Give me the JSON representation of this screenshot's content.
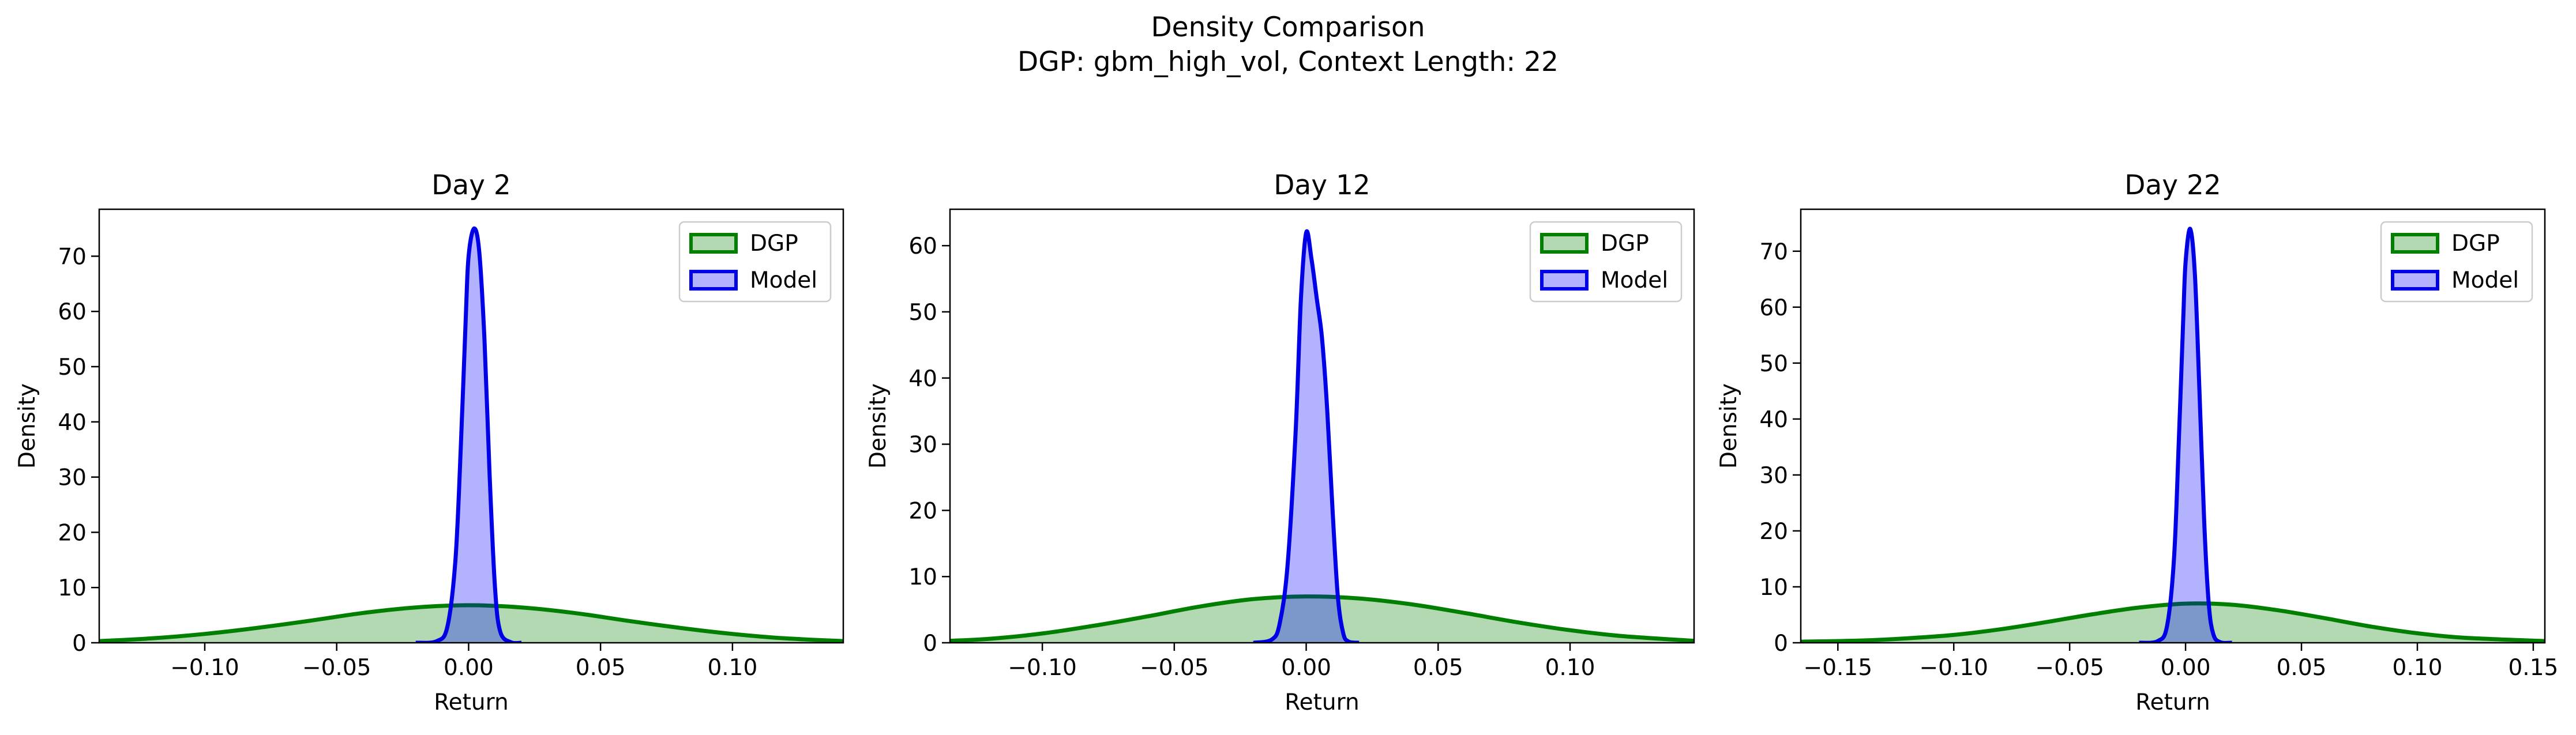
{
  "figure": {
    "title": "Density Comparison",
    "subtitle": "DGP: gbm_high_vol, Context Length: 22"
  },
  "colors": {
    "dgp_line": "#007f00",
    "dgp_fill": "#008000",
    "model_line": "#0000e6",
    "model_fill": "#0000ff"
  },
  "chart_data": [
    {
      "type": "area",
      "title": "Day 2",
      "xlabel": "Return",
      "ylabel": "Density",
      "xlim": [
        -0.14,
        0.142
      ],
      "ylim": [
        0,
        78.5
      ],
      "xticks": [
        -0.1,
        -0.05,
        0.0,
        0.05,
        0.1
      ],
      "xtick_labels": [
        "−0.10",
        "−0.05",
        "0.00",
        "0.05",
        "0.10"
      ],
      "yticks": [
        0,
        10,
        20,
        30,
        40,
        50,
        60,
        70
      ],
      "yticks_labels": [
        "0",
        "10",
        "20",
        "30",
        "40",
        "50",
        "60",
        "70"
      ],
      "legend": "top-right",
      "grid": false,
      "series": [
        {
          "name": "DGP",
          "x": [
            -0.14,
            -0.12,
            -0.1,
            -0.08,
            -0.06,
            -0.04,
            -0.02,
            0.0,
            0.02,
            0.04,
            0.06,
            0.08,
            0.1,
            0.12,
            0.142
          ],
          "y": [
            0.3,
            0.8,
            1.6,
            2.7,
            4.0,
            5.4,
            6.4,
            6.8,
            6.4,
            5.4,
            4.0,
            2.7,
            1.6,
            0.8,
            0.3
          ]
        },
        {
          "name": "Model",
          "x": [
            -0.02,
            -0.012,
            -0.008,
            -0.005,
            -0.003,
            -0.001,
            0.0,
            0.002,
            0.004,
            0.006,
            0.008,
            0.01,
            0.012,
            0.016,
            0.02
          ],
          "y": [
            0.0,
            0.3,
            3.0,
            15.0,
            35.0,
            60.0,
            70.0,
            75.0,
            71.0,
            55.0,
            30.0,
            10.0,
            2.0,
            0.1,
            0.0
          ]
        }
      ]
    },
    {
      "type": "area",
      "title": "Day 12",
      "xlabel": "Return",
      "ylabel": "Density",
      "xlim": [
        -0.135,
        0.147
      ],
      "ylim": [
        0,
        65.5
      ],
      "xticks": [
        -0.1,
        -0.05,
        0.0,
        0.05,
        0.1
      ],
      "xtick_labels": [
        "−0.10",
        "−0.05",
        "0.00",
        "0.05",
        "0.10"
      ],
      "yticks": [
        0,
        10,
        20,
        30,
        40,
        50,
        60
      ],
      "yticks_labels": [
        "0",
        "10",
        "20",
        "30",
        "40",
        "50",
        "60"
      ],
      "legend": "top-right",
      "grid": false,
      "series": [
        {
          "name": "DGP",
          "x": [
            -0.135,
            -0.12,
            -0.1,
            -0.08,
            -0.06,
            -0.04,
            -0.02,
            0.0,
            0.02,
            0.04,
            0.06,
            0.08,
            0.1,
            0.12,
            0.147
          ],
          "y": [
            0.3,
            0.6,
            1.4,
            2.6,
            4.0,
            5.5,
            6.6,
            7.0,
            6.7,
            5.8,
            4.5,
            3.1,
            1.9,
            1.0,
            0.3
          ]
        },
        {
          "name": "Model",
          "x": [
            -0.02,
            -0.013,
            -0.01,
            -0.007,
            -0.004,
            -0.002,
            0.0,
            0.002,
            0.004,
            0.006,
            0.008,
            0.01,
            0.012,
            0.014,
            0.016,
            0.02
          ],
          "y": [
            0.0,
            0.5,
            3.0,
            12.0,
            32.0,
            52.0,
            62.0,
            58.0,
            52.0,
            46.0,
            35.0,
            20.0,
            7.0,
            1.5,
            0.2,
            0.0
          ]
        }
      ]
    },
    {
      "type": "area",
      "title": "Day 22",
      "xlabel": "Return",
      "ylabel": "Density",
      "xlim": [
        -0.166,
        0.155
      ],
      "ylim": [
        0,
        77.5
      ],
      "xticks": [
        -0.15,
        -0.1,
        -0.05,
        0.0,
        0.05,
        0.1,
        0.15
      ],
      "xtick_labels": [
        "−0.15",
        "−0.10",
        "−0.05",
        "0.00",
        "0.05",
        "0.10",
        "0.15"
      ],
      "yticks": [
        0,
        10,
        20,
        30,
        40,
        50,
        60,
        70
      ],
      "yticks_labels": [
        "0",
        "10",
        "20",
        "30",
        "40",
        "50",
        "60",
        "70"
      ],
      "legend": "top-right",
      "grid": false,
      "series": [
        {
          "name": "DGP",
          "x": [
            -0.166,
            -0.14,
            -0.12,
            -0.1,
            -0.08,
            -0.06,
            -0.04,
            -0.02,
            0.0,
            0.02,
            0.04,
            0.06,
            0.08,
            0.1,
            0.12,
            0.155
          ],
          "y": [
            0.2,
            0.4,
            0.8,
            1.4,
            2.4,
            3.7,
            5.1,
            6.3,
            7.0,
            6.8,
            5.8,
            4.4,
            2.9,
            1.7,
            0.9,
            0.3
          ]
        },
        {
          "name": "Model",
          "x": [
            -0.02,
            -0.012,
            -0.008,
            -0.005,
            -0.003,
            -0.001,
            0.0,
            0.002,
            0.004,
            0.006,
            0.008,
            0.01,
            0.012,
            0.015,
            0.02
          ],
          "y": [
            0.0,
            0.3,
            3.0,
            15.0,
            35.0,
            58.0,
            68.0,
            74.0,
            66.0,
            45.0,
            22.0,
            7.0,
            1.5,
            0.1,
            0.0
          ]
        }
      ]
    }
  ]
}
